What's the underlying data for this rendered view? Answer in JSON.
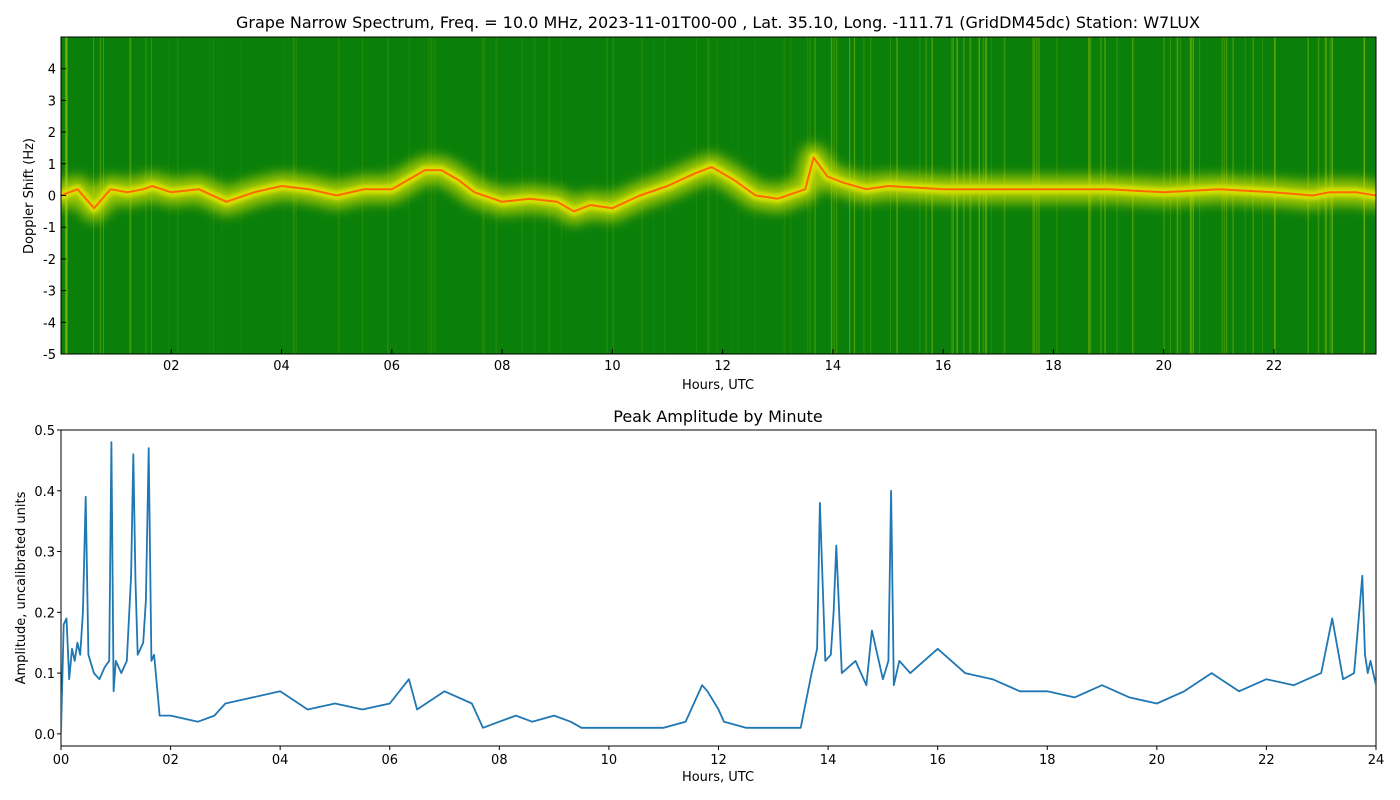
{
  "chart_data": [
    {
      "type": "heatmap",
      "title": "Grape Narrow Spectrum, Freq. = 10.0 MHz, 2023-11-01T00-00 , Lat.  35.10, Long. -111.71 (GridDM45dc) Station: W7LUX",
      "xlabel": "Hours, UTC",
      "ylabel": "Doppler Shift (Hz)",
      "xlim": [
        0,
        23.85
      ],
      "ylim": [
        -5,
        5
      ],
      "x_ticks": [
        {
          "value": 2,
          "label": "02"
        },
        {
          "value": 4,
          "label": "04"
        },
        {
          "value": 6,
          "label": "06"
        },
        {
          "value": 8,
          "label": "08"
        },
        {
          "value": 10,
          "label": "10"
        },
        {
          "value": 12,
          "label": "12"
        },
        {
          "value": 14,
          "label": "14"
        },
        {
          "value": 16,
          "label": "16"
        },
        {
          "value": 18,
          "label": "18"
        },
        {
          "value": 20,
          "label": "20"
        },
        {
          "value": 22,
          "label": "22"
        }
      ],
      "y_ticks": [
        {
          "value": -5,
          "label": "-5"
        },
        {
          "value": -4,
          "label": "-4"
        },
        {
          "value": -3,
          "label": "-3"
        },
        {
          "value": -2,
          "label": "-2"
        },
        {
          "value": -1,
          "label": "-1"
        },
        {
          "value": 0,
          "label": "0"
        },
        {
          "value": 1,
          "label": "1"
        },
        {
          "value": 2,
          "label": "2"
        },
        {
          "value": 3,
          "label": "3"
        },
        {
          "value": 4,
          "label": "4"
        }
      ],
      "colors": {
        "background": "#0a7f0a",
        "mid": "#d4e000",
        "peak": "#ff6a00"
      },
      "doppler_trace": {
        "x": [
          0,
          0.3,
          0.6,
          0.9,
          1.2,
          1.5,
          1.65,
          2.0,
          2.5,
          3.0,
          3.5,
          4.0,
          4.5,
          5.0,
          5.5,
          6.0,
          6.3,
          6.6,
          6.9,
          7.2,
          7.5,
          8.0,
          8.5,
          9.0,
          9.3,
          9.6,
          10.0,
          10.5,
          11.0,
          11.5,
          11.8,
          12.2,
          12.6,
          13.0,
          13.5,
          13.65,
          13.9,
          14.2,
          14.6,
          15.0,
          16.0,
          17.0,
          18.0,
          19.0,
          20.0,
          21.0,
          22.0,
          22.7,
          23.0,
          23.5,
          23.85
        ],
        "y": [
          0,
          0.2,
          -0.4,
          0.2,
          0.1,
          0.2,
          0.3,
          0.1,
          0.2,
          -0.2,
          0.1,
          0.3,
          0.2,
          0.0,
          0.2,
          0.2,
          0.5,
          0.8,
          0.8,
          0.5,
          0.1,
          -0.2,
          -0.1,
          -0.2,
          -0.5,
          -0.3,
          -0.4,
          0.0,
          0.3,
          0.7,
          0.9,
          0.5,
          0.0,
          -0.1,
          0.2,
          1.2,
          0.6,
          0.4,
          0.2,
          0.3,
          0.2,
          0.2,
          0.2,
          0.2,
          0.1,
          0.2,
          0.1,
          0.0,
          0.1,
          0.1,
          0.0
        ]
      }
    },
    {
      "type": "line",
      "title": "Peak Amplitude by Minute",
      "xlabel": "Hours, UTC",
      "ylabel": "Amplitude, uncalibrated units",
      "xlim": [
        0,
        24
      ],
      "ylim": [
        -0.02,
        0.5
      ],
      "x_ticks": [
        {
          "value": 0,
          "label": "00"
        },
        {
          "value": 2,
          "label": "02"
        },
        {
          "value": 4,
          "label": "04"
        },
        {
          "value": 6,
          "label": "06"
        },
        {
          "value": 8,
          "label": "08"
        },
        {
          "value": 10,
          "label": "10"
        },
        {
          "value": 12,
          "label": "12"
        },
        {
          "value": 14,
          "label": "14"
        },
        {
          "value": 16,
          "label": "16"
        },
        {
          "value": 18,
          "label": "18"
        },
        {
          "value": 20,
          "label": "20"
        },
        {
          "value": 22,
          "label": "22"
        },
        {
          "value": 24,
          "label": "24"
        }
      ],
      "y_ticks": [
        {
          "value": 0.0,
          "label": "0.0"
        },
        {
          "value": 0.1,
          "label": "0.1"
        },
        {
          "value": 0.2,
          "label": "0.2"
        },
        {
          "value": 0.3,
          "label": "0.3"
        },
        {
          "value": 0.4,
          "label": "0.4"
        },
        {
          "value": 0.5,
          "label": "0.5"
        }
      ],
      "series": [
        {
          "color": "#1f77b4",
          "x": [
            0.0,
            0.05,
            0.1,
            0.15,
            0.2,
            0.25,
            0.3,
            0.35,
            0.4,
            0.45,
            0.5,
            0.6,
            0.7,
            0.8,
            0.88,
            0.92,
            0.96,
            1.0,
            1.1,
            1.2,
            1.28,
            1.32,
            1.36,
            1.4,
            1.5,
            1.55,
            1.6,
            1.65,
            1.7,
            1.75,
            1.8,
            2.0,
            2.5,
            2.8,
            3.0,
            3.5,
            4.0,
            4.5,
            5.0,
            5.5,
            6.0,
            6.35,
            6.5,
            7.0,
            7.5,
            7.7,
            8.0,
            8.3,
            8.6,
            9.0,
            9.3,
            9.5,
            10.0,
            10.5,
            11.0,
            11.4,
            11.7,
            11.8,
            12.0,
            12.1,
            12.5,
            13.0,
            13.5,
            13.7,
            13.8,
            13.85,
            13.95,
            14.05,
            14.1,
            14.15,
            14.25,
            14.5,
            14.7,
            14.8,
            15.0,
            15.1,
            15.15,
            15.2,
            15.3,
            15.5,
            16.0,
            16.5,
            17.0,
            17.5,
            18.0,
            18.5,
            19.0,
            19.5,
            20.0,
            20.5,
            21.0,
            21.5,
            22.0,
            22.5,
            23.0,
            23.2,
            23.4,
            23.6,
            23.75,
            23.8,
            23.85,
            23.9,
            24.0
          ],
          "values": [
            0.0,
            0.18,
            0.19,
            0.09,
            0.14,
            0.12,
            0.15,
            0.13,
            0.2,
            0.39,
            0.13,
            0.1,
            0.09,
            0.11,
            0.12,
            0.48,
            0.07,
            0.12,
            0.1,
            0.12,
            0.26,
            0.46,
            0.25,
            0.13,
            0.15,
            0.22,
            0.47,
            0.12,
            0.13,
            0.08,
            0.03,
            0.03,
            0.02,
            0.03,
            0.05,
            0.06,
            0.07,
            0.04,
            0.05,
            0.04,
            0.05,
            0.09,
            0.04,
            0.07,
            0.05,
            0.01,
            0.02,
            0.03,
            0.02,
            0.03,
            0.02,
            0.01,
            0.01,
            0.01,
            0.01,
            0.02,
            0.08,
            0.07,
            0.04,
            0.02,
            0.01,
            0.01,
            0.01,
            0.1,
            0.14,
            0.38,
            0.12,
            0.13,
            0.2,
            0.31,
            0.1,
            0.12,
            0.08,
            0.17,
            0.09,
            0.12,
            0.4,
            0.08,
            0.12,
            0.1,
            0.14,
            0.1,
            0.09,
            0.07,
            0.07,
            0.06,
            0.08,
            0.06,
            0.05,
            0.07,
            0.1,
            0.07,
            0.09,
            0.08,
            0.1,
            0.19,
            0.09,
            0.1,
            0.26,
            0.13,
            0.1,
            0.12,
            0.08
          ]
        }
      ]
    }
  ]
}
